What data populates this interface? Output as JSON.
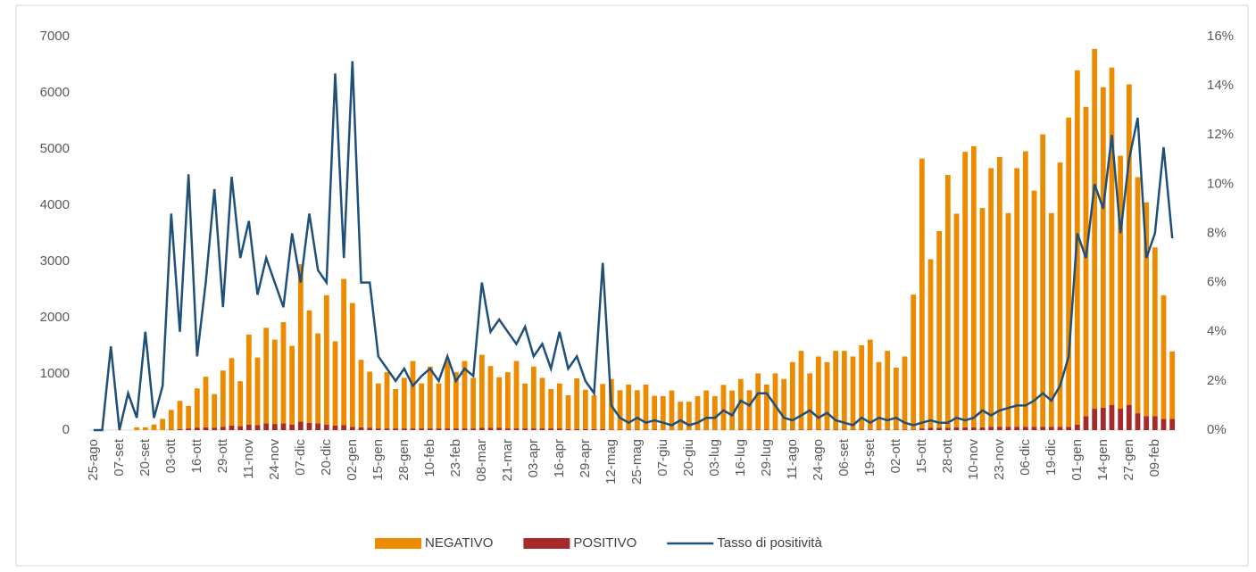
{
  "chart_data": {
    "type": "bar-line",
    "categories": [
      "25-ago",
      null,
      null,
      "07-set",
      null,
      null,
      "20-set",
      null,
      null,
      "03-ott",
      null,
      null,
      "16-ott",
      null,
      null,
      "29-ott",
      null,
      null,
      "11-nov",
      null,
      null,
      "24-nov",
      null,
      null,
      "07-dic",
      null,
      null,
      "20-dic",
      null,
      null,
      "02-gen",
      null,
      null,
      "15-gen",
      null,
      null,
      "28-gen",
      null,
      null,
      "10-feb",
      null,
      null,
      "23-feb",
      null,
      null,
      "08-mar",
      null,
      null,
      "21-mar",
      null,
      null,
      "03-apr",
      null,
      null,
      "16-apr",
      null,
      null,
      "29-apr",
      null,
      null,
      "12-mag",
      null,
      null,
      "25-mag",
      null,
      null,
      "07-giu",
      null,
      null,
      "20-giu",
      null,
      null,
      "03-lug",
      null,
      null,
      "16-lug",
      null,
      null,
      "29-lug",
      null,
      null,
      "11-ago",
      null,
      null,
      "24-ago",
      null,
      null,
      "06-set",
      null,
      null,
      "19-set",
      null,
      null,
      "02-ott",
      null,
      null,
      "15-ott",
      null,
      null,
      "28-ott",
      null,
      null,
      "10-nov",
      null,
      null,
      "23-nov",
      null,
      null,
      "06-dic",
      null,
      null,
      "19-dic",
      null,
      null,
      "01-gen",
      null,
      null,
      "14-gen",
      null,
      null,
      "27-gen",
      null,
      null,
      "09-feb",
      null,
      null
    ],
    "series": [
      {
        "name": "NEGATIVO",
        "color": "#ED8B00",
        "kind": "bar",
        "values": [
          0,
          0,
          0,
          0,
          0,
          50,
          50,
          100,
          200,
          350,
          500,
          400,
          700,
          900,
          600,
          1000,
          1200,
          800,
          1600,
          1200,
          1700,
          1500,
          1800,
          1400,
          2800,
          2000,
          1600,
          2300,
          1500,
          2600,
          2200,
          1200,
          1000,
          800,
          1000,
          700,
          900,
          1200,
          800,
          1100,
          800,
          1200,
          1000,
          1200,
          900,
          1300,
          1100,
          900,
          1000,
          1200,
          800,
          1100,
          900,
          700,
          800,
          600,
          900,
          700,
          600,
          800,
          900,
          700,
          800,
          700,
          800,
          600,
          600,
          700,
          500,
          500,
          600,
          700,
          600,
          800,
          700,
          900,
          700,
          1000,
          800,
          1000,
          900,
          1200,
          1400,
          1000,
          1300,
          1200,
          1400,
          1400,
          1300,
          1500,
          1600,
          1200,
          1400,
          1100,
          1300,
          2400,
          4800,
          3000,
          3500,
          4500,
          3800,
          4900,
          5000,
          3900,
          4600,
          4800,
          3800,
          4600,
          4900,
          4200,
          5200,
          3800,
          4700,
          5500,
          6300,
          5500,
          6400,
          5700,
          6000,
          4500,
          5700,
          4200,
          3800,
          3000,
          2200,
          1200
        ]
      },
      {
        "name": "POSITIVO",
        "color": "#A52A2A",
        "kind": "bar",
        "values": [
          0,
          0,
          0,
          0,
          0,
          0,
          0,
          0,
          0,
          10,
          20,
          30,
          40,
          50,
          40,
          60,
          80,
          70,
          100,
          90,
          120,
          110,
          120,
          100,
          150,
          130,
          120,
          100,
          80,
          90,
          60,
          50,
          40,
          30,
          30,
          30,
          30,
          30,
          30,
          30,
          30,
          30,
          30,
          30,
          30,
          40,
          40,
          40,
          30,
          30,
          30,
          30,
          30,
          30,
          30,
          20,
          20,
          20,
          20,
          20,
          10,
          10,
          10,
          10,
          10,
          10,
          5,
          5,
          5,
          5,
          5,
          5,
          5,
          5,
          5,
          10,
          10,
          10,
          10,
          10,
          10,
          10,
          10,
          10,
          10,
          10,
          10,
          10,
          10,
          10,
          10,
          10,
          10,
          10,
          10,
          10,
          30,
          40,
          40,
          40,
          50,
          50,
          50,
          50,
          60,
          60,
          60,
          60,
          60,
          60,
          60,
          60,
          60,
          60,
          100,
          250,
          380,
          400,
          450,
          380,
          450,
          300,
          250,
          250,
          200,
          200
        ]
      },
      {
        "name": "Tasso di positività",
        "color": "#1F5079",
        "kind": "line",
        "axis": "y2",
        "values": [
          0,
          0,
          3.4,
          0,
          1.5,
          0.5,
          4,
          0.5,
          1.8,
          8.8,
          4,
          10.4,
          3,
          6,
          9.8,
          5,
          10.3,
          7,
          8.5,
          5.5,
          7,
          6,
          5,
          8,
          6,
          8.8,
          6.5,
          6,
          14.5,
          7,
          15,
          6,
          6,
          3,
          2.5,
          2,
          2.5,
          1.8,
          2.2,
          2.5,
          2,
          3,
          2,
          2.5,
          2.2,
          6,
          4,
          4.5,
          4,
          3.5,
          4.2,
          3,
          3.5,
          2.5,
          4,
          2.5,
          3,
          2,
          1.5,
          6.8,
          1,
          0.5,
          0.3,
          0.5,
          0.3,
          0.4,
          0.3,
          0.2,
          0.4,
          0.2,
          0.3,
          0.5,
          0.5,
          0.8,
          0.6,
          1.2,
          1,
          1.5,
          1.5,
          1,
          0.5,
          0.4,
          0.6,
          0.8,
          0.5,
          0.7,
          0.4,
          0.3,
          0.2,
          0.5,
          0.3,
          0.5,
          0.4,
          0.5,
          0.3,
          0.2,
          0.3,
          0.4,
          0.3,
          0.3,
          0.5,
          0.4,
          0.5,
          0.8,
          0.6,
          0.8,
          0.9,
          1,
          1,
          1.2,
          1.5,
          1.2,
          1.8,
          3,
          8,
          7,
          10,
          9,
          12,
          8,
          11,
          12.7,
          7,
          8,
          11.5,
          7.8
        ]
      }
    ],
    "ylim": [
      0,
      7000
    ],
    "yticks": [
      0,
      1000,
      2000,
      3000,
      4000,
      5000,
      6000,
      7000
    ],
    "y2lim": [
      0,
      16
    ],
    "y2ticks": [
      {
        "value": 0,
        "label": "0%"
      },
      {
        "value": 2,
        "label": "2%"
      },
      {
        "value": 4,
        "label": "4%"
      },
      {
        "value": 6,
        "label": "6%"
      },
      {
        "value": 8,
        "label": "8%"
      },
      {
        "value": 10,
        "label": "10%"
      },
      {
        "value": 12,
        "label": "12%"
      },
      {
        "value": 14,
        "label": "14%"
      },
      {
        "value": 16,
        "label": "16%"
      }
    ],
    "grid": false,
    "legend": "bottom"
  }
}
